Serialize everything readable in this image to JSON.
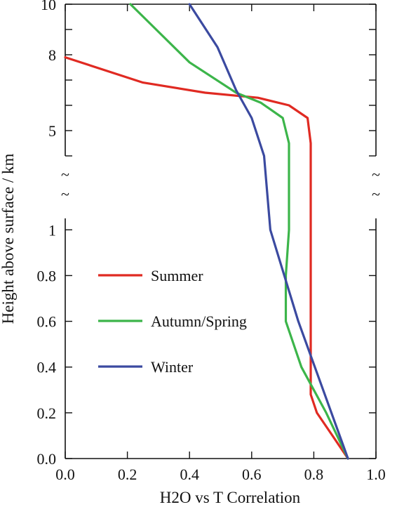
{
  "chart_data": {
    "type": "line",
    "xlabel": "H2O vs  T Correlation",
    "ylabel": "Height above surface / km",
    "xlim": [
      0.0,
      1.0
    ],
    "x_ticks": [
      "0.0",
      "0.2",
      "0.4",
      "0.6",
      "0.8",
      "1.0"
    ],
    "y_axis_break": "~",
    "y_lower": {
      "ylim": [
        0.0,
        1.05
      ],
      "ticks": [
        "0.0",
        "0.2",
        "0.4",
        "0.6",
        "0.8",
        "1"
      ]
    },
    "y_upper": {
      "ylim": [
        4.0,
        10.0
      ],
      "ticks": [
        "5",
        "8",
        "10"
      ]
    },
    "legend_position": "center-left",
    "series": [
      {
        "name": "Summer",
        "color": "#e02a22",
        "points": [
          [
            0.91,
            0.0
          ],
          [
            0.86,
            0.1
          ],
          [
            0.81,
            0.2
          ],
          [
            0.79,
            0.28
          ],
          [
            0.79,
            0.5
          ],
          [
            0.79,
            1.0
          ],
          [
            0.79,
            4.5
          ],
          [
            0.78,
            5.5
          ],
          [
            0.72,
            6.0
          ],
          [
            0.62,
            6.3
          ],
          [
            0.45,
            6.5
          ],
          [
            0.25,
            6.9
          ],
          [
            0.0,
            7.9
          ]
        ]
      },
      {
        "name": "Autumn/Spring",
        "color": "#3cb54a",
        "points": [
          [
            0.91,
            0.0
          ],
          [
            0.84,
            0.2
          ],
          [
            0.76,
            0.4
          ],
          [
            0.71,
            0.6
          ],
          [
            0.71,
            0.8
          ],
          [
            0.72,
            1.0
          ],
          [
            0.72,
            4.5
          ],
          [
            0.7,
            5.5
          ],
          [
            0.63,
            6.1
          ],
          [
            0.55,
            6.5
          ],
          [
            0.4,
            7.7
          ],
          [
            0.21,
            10.0
          ]
        ]
      },
      {
        "name": "Winter",
        "color": "#3b4aa0",
        "points": [
          [
            0.91,
            0.0
          ],
          [
            0.83,
            0.3
          ],
          [
            0.75,
            0.6
          ],
          [
            0.66,
            1.0
          ],
          [
            0.64,
            4.0
          ],
          [
            0.6,
            5.5
          ],
          [
            0.55,
            6.6
          ],
          [
            0.49,
            8.3
          ],
          [
            0.4,
            10.0
          ]
        ]
      }
    ]
  }
}
